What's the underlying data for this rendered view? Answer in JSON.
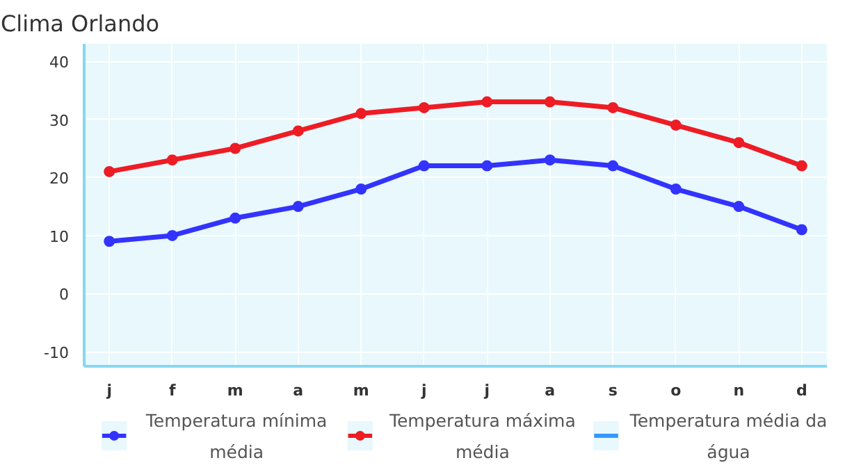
{
  "chart_data": {
    "type": "line",
    "title": "Clima Orlando",
    "categories": [
      "j",
      "f",
      "m",
      "a",
      "m",
      "j",
      "j",
      "a",
      "s",
      "o",
      "n",
      "d"
    ],
    "series": [
      {
        "name": "Temperatura mínima média",
        "color": "#3333ff",
        "values": [
          9,
          10,
          13,
          15,
          18,
          22,
          22,
          23,
          22,
          18,
          15,
          11
        ]
      },
      {
        "name": "Temperatura máxima média",
        "color": "#ee1c25",
        "values": [
          21,
          23,
          25,
          28,
          31,
          32,
          33,
          33,
          32,
          29,
          26,
          22
        ]
      },
      {
        "name": "Temperatura média da água",
        "color": "#3399ff",
        "marker": "none",
        "values": [
          null,
          null,
          null,
          null,
          null,
          null,
          null,
          null,
          null,
          null,
          null,
          null
        ]
      }
    ],
    "ylim": [
      -12.5,
      43
    ],
    "yticks": [
      -10,
      0,
      10,
      20,
      30,
      40
    ],
    "grid": true,
    "legend": "bottom",
    "marker": "circle",
    "line_style": "solid"
  }
}
